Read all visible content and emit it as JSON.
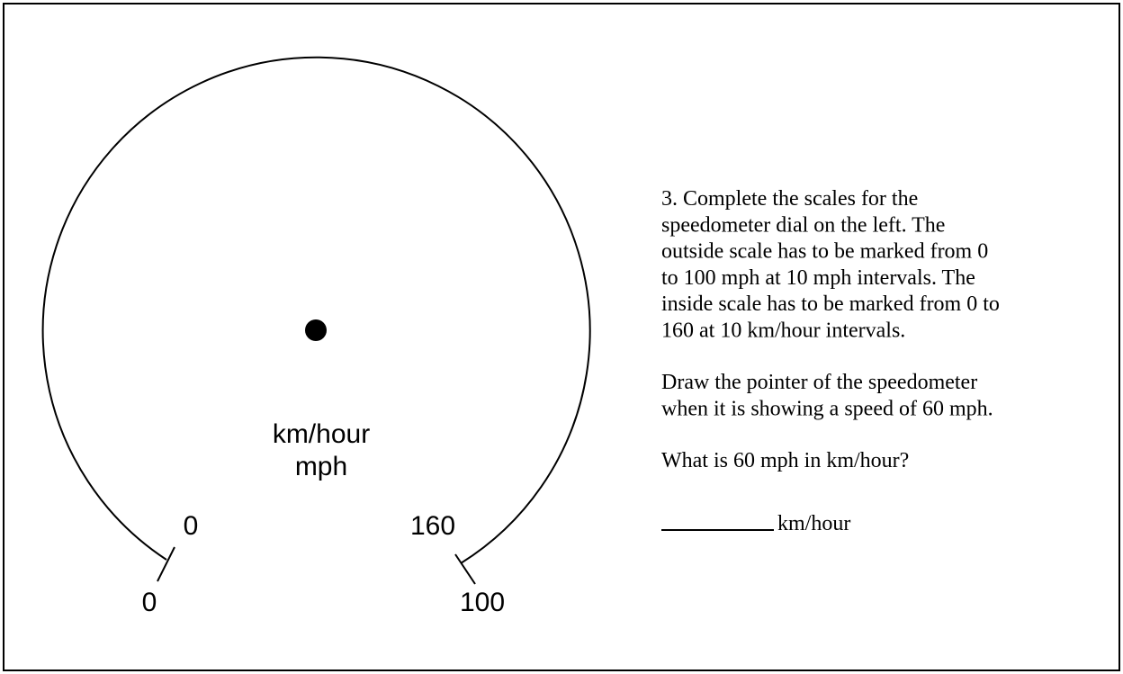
{
  "dial": {
    "inner_unit": "km/hour",
    "outer_unit": "mph",
    "inner_start": "0",
    "inner_end": "160",
    "outer_start": "0",
    "outer_end": "100"
  },
  "question": {
    "lines": [
      "3. Complete the scales for the",
      "speedometer dial on the left. The",
      "outside scale has to be marked from 0",
      "to 100 mph at 10 mph intervals. The",
      "inside scale has to be marked from 0 to",
      "160 at 10 km/hour intervals."
    ],
    "pointer_task": [
      "Draw the pointer of the speedometer",
      "when it is showing a speed of 60 mph."
    ],
    "ask": "What is 60 mph in km/hour?",
    "answer_unit": "km/hour"
  }
}
